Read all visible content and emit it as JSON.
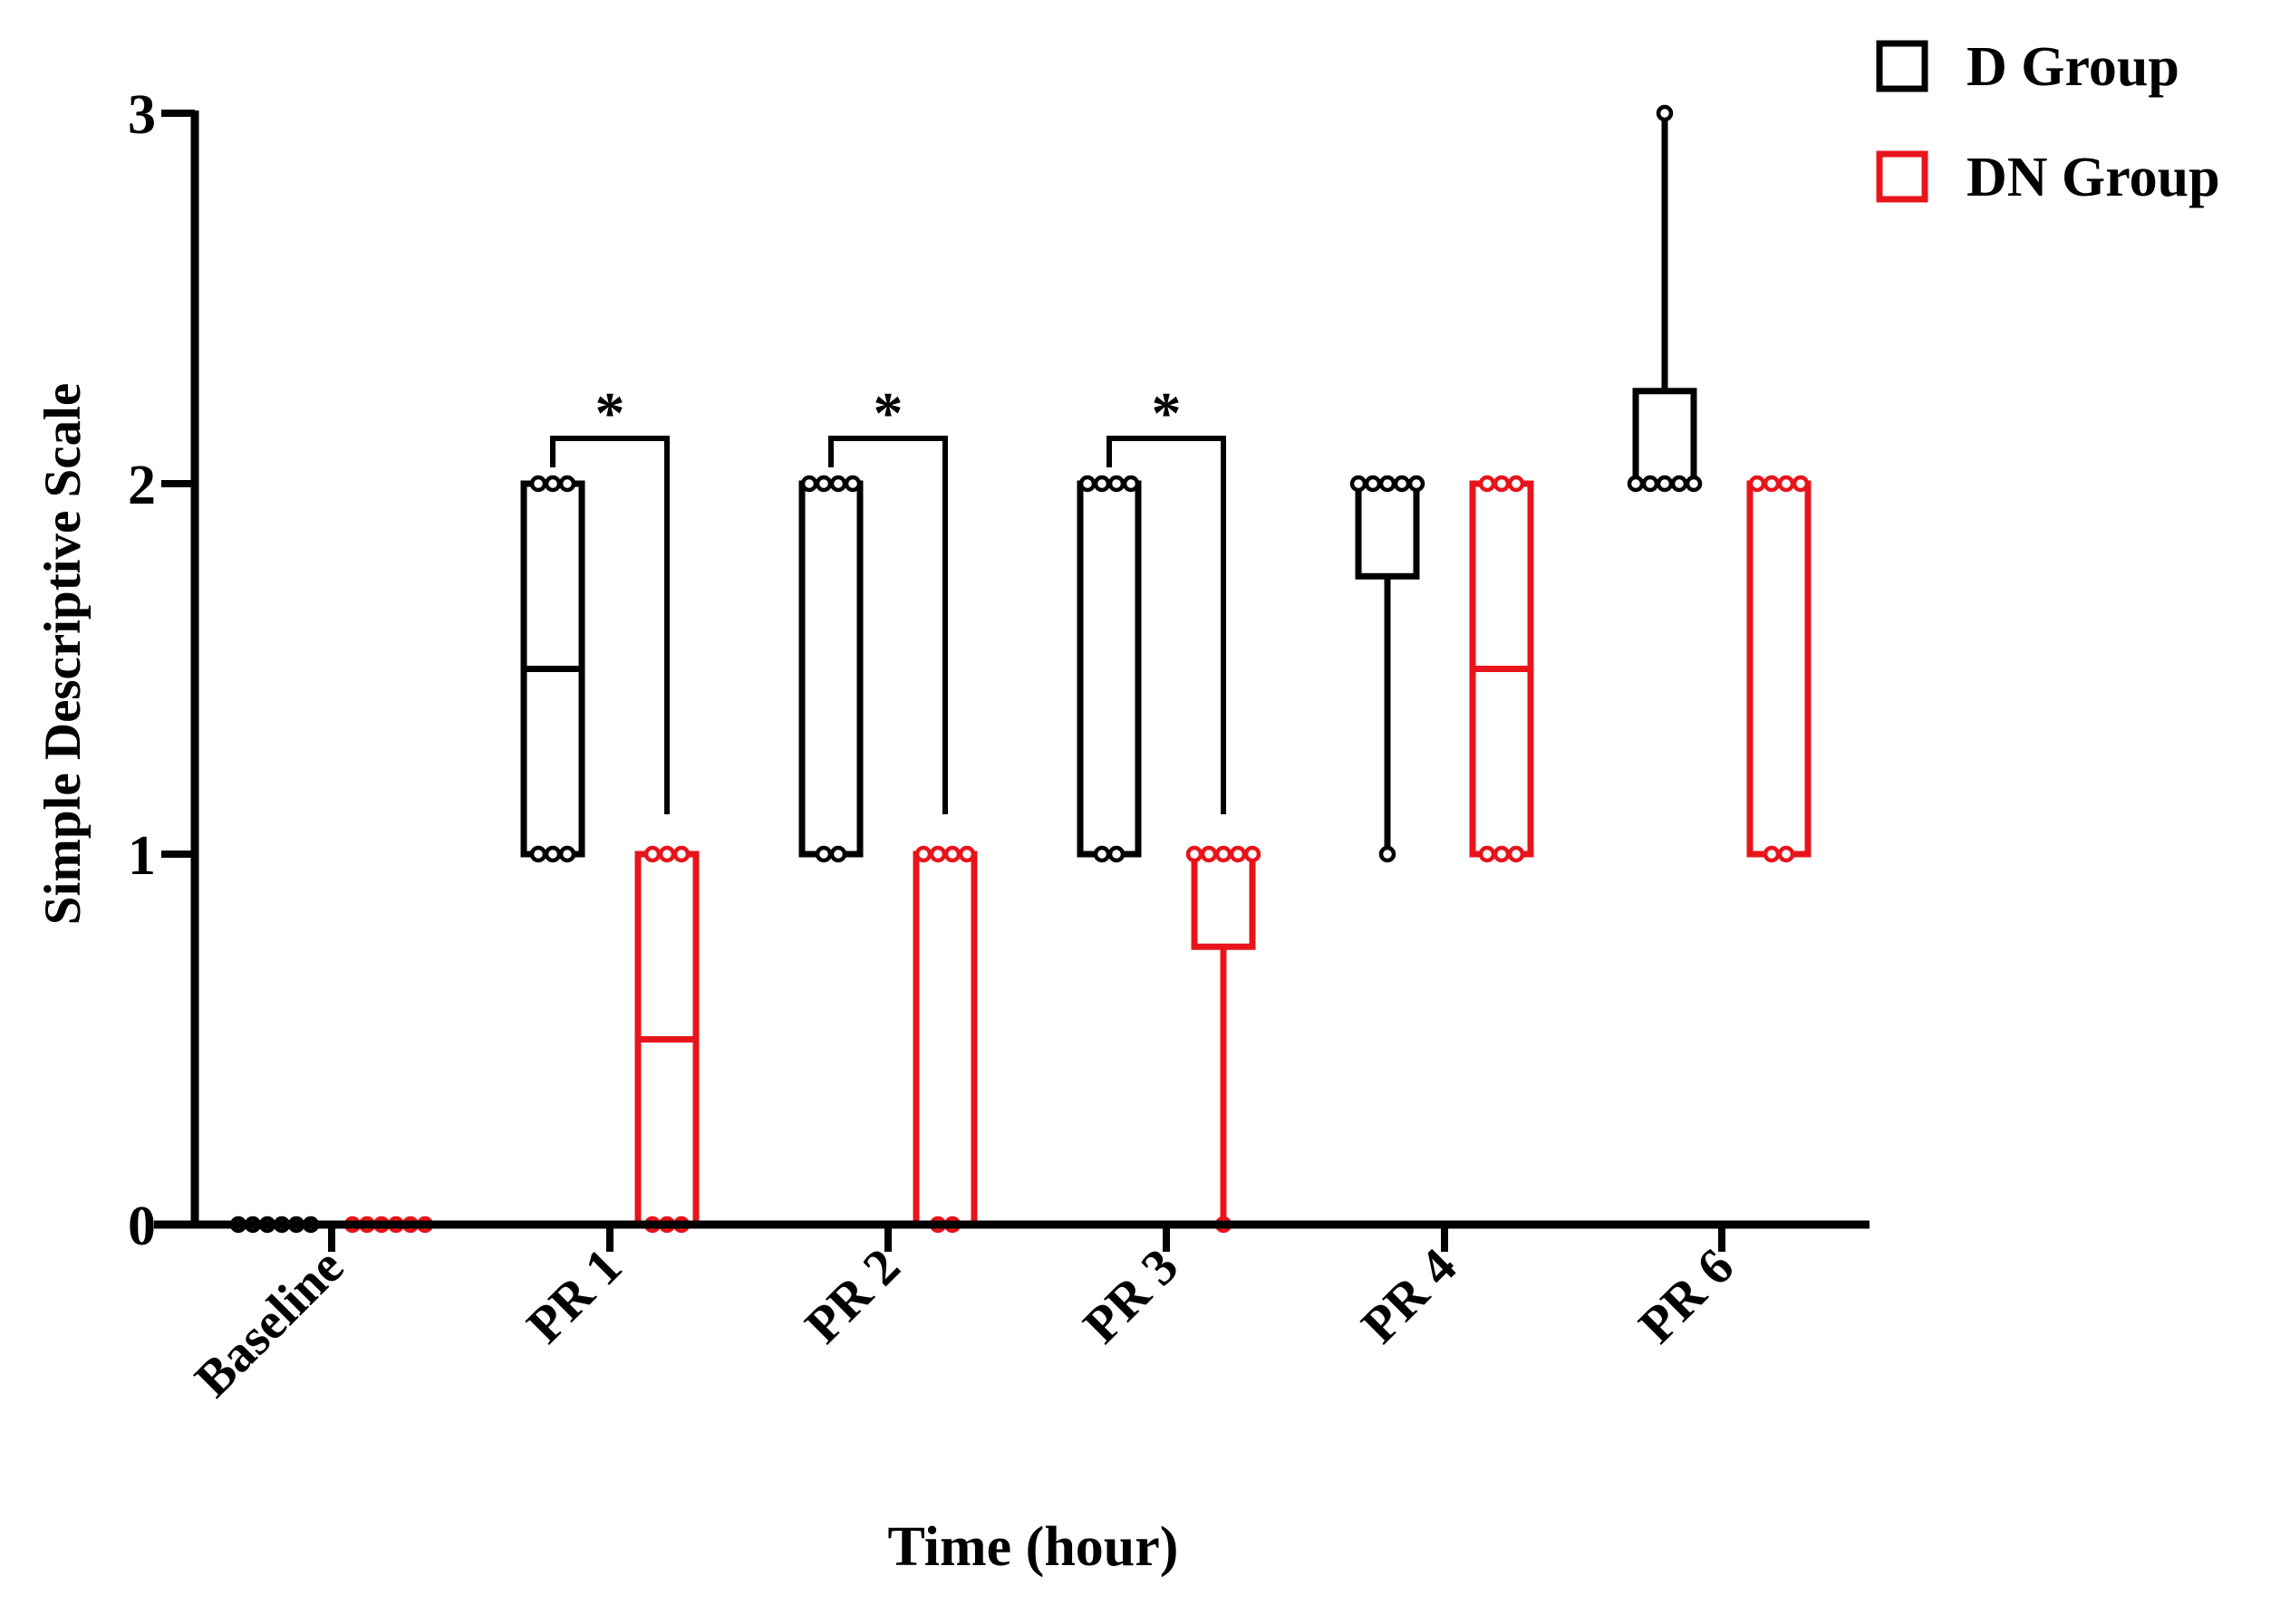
{
  "chart_data": {
    "type": "box",
    "title": "",
    "xlabel": "Time (hour)",
    "ylabel": "Simple Descriptive Scale",
    "ylim": [
      0,
      3
    ],
    "yticks": [
      0,
      1,
      2,
      3
    ],
    "categories": [
      "Baseline",
      "PR 1",
      "PR 2",
      "PR 3",
      "PR 4",
      "PR 6"
    ],
    "legend": {
      "position": "top-right"
    },
    "series": [
      {
        "name": "D Group",
        "color": "#000000",
        "boxes": [
          {
            "category": "Baseline",
            "min": 0,
            "q1": 0,
            "median": 0,
            "q3": 0,
            "max": 0,
            "points": [
              0,
              0,
              0,
              0,
              0,
              0
            ]
          },
          {
            "category": "PR 1",
            "min": 1,
            "q1": 1,
            "median": 1.5,
            "q3": 2,
            "max": 2,
            "points": [
              1,
              1,
              1,
              2,
              2,
              2
            ]
          },
          {
            "category": "PR 2",
            "min": 1,
            "q1": 1,
            "median": 2,
            "q3": 2,
            "max": 2,
            "points": [
              1,
              1,
              2,
              2,
              2,
              2
            ]
          },
          {
            "category": "PR 3",
            "min": 1,
            "q1": 1,
            "median": 2,
            "q3": 2,
            "max": 2,
            "points": [
              1,
              1,
              2,
              2,
              2,
              2
            ]
          },
          {
            "category": "PR 4",
            "min": 1,
            "q1": 1.75,
            "median": 2,
            "q3": 2,
            "max": 2,
            "points": [
              1,
              2,
              2,
              2,
              2,
              2
            ]
          },
          {
            "category": "PR 6",
            "min": 2,
            "q1": 2,
            "median": 2,
            "q3": 2.25,
            "max": 3,
            "points": [
              2,
              2,
              2,
              2,
              2,
              3
            ]
          }
        ]
      },
      {
        "name": "DN Group",
        "color": "#e8141b",
        "boxes": [
          {
            "category": "Baseline",
            "min": 0,
            "q1": 0,
            "median": 0,
            "q3": 0,
            "max": 0,
            "points": [
              0,
              0,
              0,
              0,
              0,
              0
            ]
          },
          {
            "category": "PR 1",
            "min": 0,
            "q1": 0,
            "median": 0.5,
            "q3": 1,
            "max": 1,
            "points": [
              0,
              0,
              0,
              1,
              1,
              1
            ]
          },
          {
            "category": "PR 2",
            "min": 0,
            "q1": 0,
            "median": 1,
            "q3": 1,
            "max": 1,
            "points": [
              0,
              0,
              1,
              1,
              1,
              1
            ]
          },
          {
            "category": "PR 3",
            "min": 0,
            "q1": 0.75,
            "median": 1,
            "q3": 1,
            "max": 1,
            "points": [
              0,
              1,
              1,
              1,
              1,
              1
            ]
          },
          {
            "category": "PR 4",
            "min": 1,
            "q1": 1,
            "median": 1.5,
            "q3": 2,
            "max": 2,
            "points": [
              1,
              1,
              1,
              2,
              2,
              2
            ]
          },
          {
            "category": "PR 6",
            "min": 1,
            "q1": 1,
            "median": 2,
            "q3": 2,
            "max": 2,
            "points": [
              1,
              1,
              2,
              2,
              2,
              2
            ]
          }
        ]
      }
    ],
    "significance": [
      {
        "category": "PR 1",
        "label": "*"
      },
      {
        "category": "PR 2",
        "label": "*"
      },
      {
        "category": "PR 3",
        "label": "*"
      }
    ]
  }
}
